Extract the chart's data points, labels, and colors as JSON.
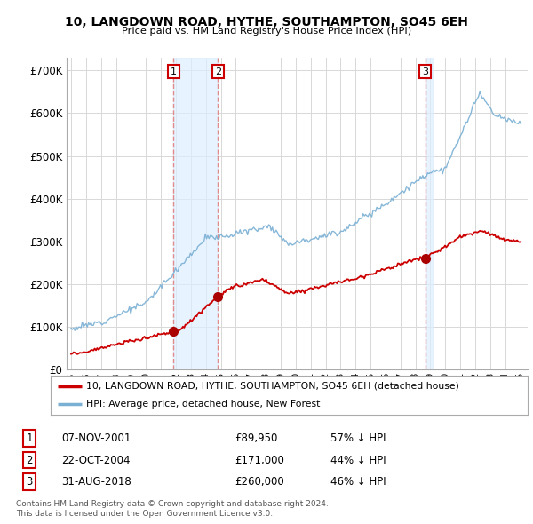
{
  "title": "10, LANGDOWN ROAD, HYTHE, SOUTHAMPTON, SO45 6EH",
  "subtitle": "Price paid vs. HM Land Registry's House Price Index (HPI)",
  "background_color": "#ffffff",
  "plot_bg_color": "#ffffff",
  "grid_color": "#d8d8d8",
  "red_line_label": "10, LANGDOWN ROAD, HYTHE, SOUTHAMPTON, SO45 6EH (detached house)",
  "blue_line_label": "HPI: Average price, detached house, New Forest",
  "transactions": [
    {
      "num": 1,
      "date": "07-NOV-2001",
      "price": 89950,
      "pct": "57% ↓ HPI"
    },
    {
      "num": 2,
      "date": "22-OCT-2004",
      "price": 171000,
      "pct": "44% ↓ HPI"
    },
    {
      "num": 3,
      "date": "31-AUG-2018",
      "price": 260000,
      "pct": "46% ↓ HPI"
    }
  ],
  "footer": "Contains HM Land Registry data © Crown copyright and database right 2024.\nThis data is licensed under the Open Government Licence v3.0.",
  "transaction_years": [
    2001.85,
    2004.81,
    2018.66
  ],
  "transaction_prices": [
    89950,
    171000,
    260000
  ],
  "red_color": "#cc0000",
  "blue_color": "#7ab0d4",
  "marker_color": "#aa0000",
  "vline_color": "#e08080",
  "vfill_color": "#ddeeff",
  "label_box_color": "#cc0000",
  "yticks": [
    0,
    100000,
    200000,
    300000,
    400000,
    500000,
    600000,
    700000
  ],
  "ylim": [
    0,
    730000
  ],
  "xlim_start": 1994.7,
  "xlim_end": 2025.5
}
